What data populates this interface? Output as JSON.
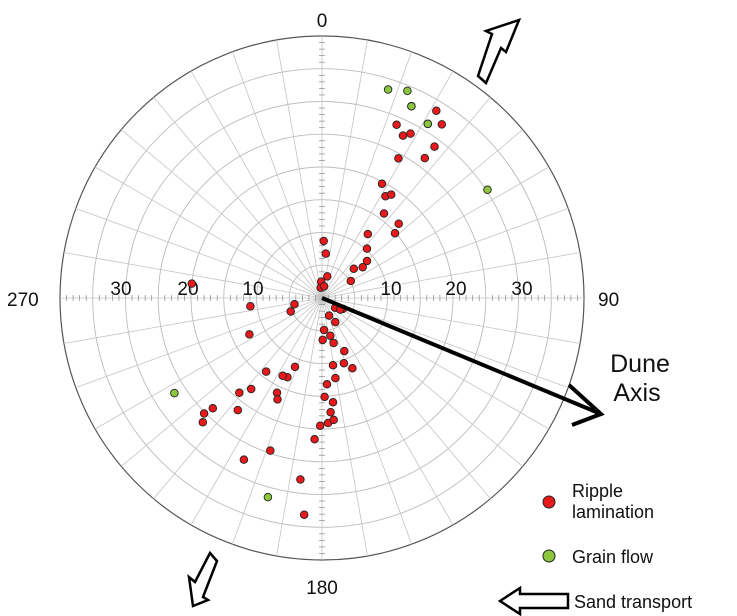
{
  "chart_data": {
    "type": "scatter",
    "projection": "polar stereonet, azimuth clockwise from north",
    "title": "",
    "cardinal_labels": [
      {
        "azimuth": 0,
        "label": "0"
      },
      {
        "azimuth": 90,
        "label": "90"
      },
      {
        "azimuth": 180,
        "label": "180"
      },
      {
        "azimuth": 270,
        "label": "270"
      }
    ],
    "dip_tick_labels": [
      {
        "side": "east",
        "label": "10",
        "value": 10
      },
      {
        "side": "east",
        "label": "20",
        "value": 20
      },
      {
        "side": "east",
        "label": "30",
        "value": 30
      },
      {
        "side": "west",
        "label": "10",
        "value": 10
      },
      {
        "side": "west",
        "label": "20",
        "value": 20
      },
      {
        "side": "west",
        "label": "30",
        "value": 30
      }
    ],
    "radial_range": [
      0,
      40
    ],
    "grid": {
      "rings_every": 5,
      "spokes_every_degrees": 10
    },
    "dune_axis": {
      "label_line1": "Dune",
      "label_line2": "Axis",
      "azimuth": 113
    },
    "sand_transport_arrows_azimuth": [
      215,
      35
    ],
    "series": [
      {
        "name": "Ripple lamination",
        "color": "#e8191b",
        "points": [
          [
            26.5,
            27.7
          ],
          [
            28.3,
            28.5
          ],
          [
            31.3,
            31.1
          ],
          [
            31.4,
            33.5
          ],
          [
            34.6,
            32.2
          ],
          [
            25.0,
            32.3
          ],
          [
            23.3,
            28.8
          ],
          [
            28.7,
            24.3
          ],
          [
            36.3,
            26.5
          ],
          [
            36.6,
            28.8
          ],
          [
            27.7,
            19.7
          ],
          [
            32.0,
            18.3
          ],
          [
            33.8,
            19.0
          ],
          [
            36.3,
            16.0
          ],
          [
            48.4,
            14.9
          ],
          [
            45.9,
            16.3
          ],
          [
            1.7,
            8.7
          ],
          [
            4.9,
            6.8
          ],
          [
            -7.0,
            1.6
          ],
          [
            -2.8,
            2.5
          ],
          [
            10.3,
            1.8
          ],
          [
            13.7,
            3.4
          ],
          [
            35.6,
            12.0
          ],
          [
            42.3,
            10.2
          ],
          [
            50.6,
            8.9
          ],
          [
            52.9,
            7.8
          ],
          [
            47.3,
            6.6
          ],
          [
            59.4,
            5.1
          ],
          [
            117.4,
            3.6
          ],
          [
            126.4,
            2.5
          ],
          [
            122.6,
            3.3
          ],
          [
            151.0,
            4.2
          ],
          [
            157.9,
            2.9
          ],
          [
            176.5,
            4.9
          ],
          [
            167.6,
            5.9
          ],
          [
            165.6,
            7.1
          ],
          [
            179.1,
            6.4
          ],
          [
            156.6,
            11.7
          ],
          [
            157.2,
            8.8
          ],
          [
            161.4,
            10.5
          ],
          [
            170.7,
            10.4
          ],
          [
            170.5,
            12.4
          ],
          [
            176.7,
            13.2
          ],
          [
            178.5,
            15.1
          ],
          [
            174.0,
            16.0
          ],
          [
            175.7,
            17.5
          ],
          [
            177.2,
            19.1
          ],
          [
            174.5,
            18.7
          ],
          [
            180.8,
            19.5
          ],
          [
            183.0,
            21.6
          ],
          [
            201.4,
            11.3
          ],
          [
            203.6,
            13.2
          ],
          [
            206.8,
            13.3
          ],
          [
            205.4,
            16.0
          ],
          [
            203.7,
            16.9
          ],
          [
            217.2,
            14.1
          ],
          [
            217.9,
            17.6
          ],
          [
            221.1,
            19.2
          ],
          [
            216.9,
            21.4
          ],
          [
            224.7,
            23.7
          ],
          [
            225.6,
            25.2
          ],
          [
            223.8,
            26.3
          ],
          [
            205.8,
            27.4
          ],
          [
            198.7,
            24.6
          ],
          [
            186.8,
            27.9
          ],
          [
            184.7,
            33.2
          ],
          [
            243.4,
            12.4
          ],
          [
            257.1,
            4.3
          ],
          [
            246.6,
            5.2
          ],
          [
            263.4,
            11.0
          ],
          [
            276.3,
            20.0
          ]
        ]
      },
      {
        "name": "Grain flow",
        "color": "#8cc63f",
        "points": [
          [
            17.6,
            33.4
          ],
          [
            22.4,
            34.2
          ],
          [
            31.3,
            31.1
          ],
          [
            25.0,
            32.3
          ],
          [
            56.8,
            30.2
          ],
          [
            195.2,
            31.5
          ],
          [
            237.2,
            26.8
          ]
        ]
      }
    ]
  },
  "legend": {
    "items": [
      {
        "label_line1": "Ripple",
        "label_line2": "lamination",
        "color": "#e8191b"
      },
      {
        "label_line1": "Grain flow",
        "label_line2": "",
        "color": "#8cc63f"
      },
      {
        "label_line1": "Sand transport",
        "label_line2": ""
      }
    ]
  }
}
